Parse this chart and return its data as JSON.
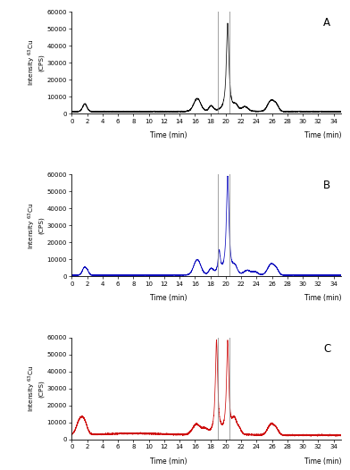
{
  "panels": [
    {
      "label": "A",
      "color": "#000000",
      "seed": 42
    },
    {
      "label": "B",
      "color": "#0000BB",
      "seed": 7
    },
    {
      "label": "C",
      "color": "#CC0000",
      "seed": 13
    }
  ],
  "ylim": [
    0,
    60000
  ],
  "yticks": [
    0,
    10000,
    20000,
    30000,
    40000,
    50000,
    60000
  ],
  "ytick_labels": [
    "0",
    "10000",
    "20000",
    "30000",
    "40000",
    "50000",
    "60000"
  ],
  "xlim": [
    0,
    35
  ],
  "xticks": [
    0,
    2,
    4,
    6,
    8,
    10,
    12,
    14,
    16,
    18,
    20,
    22,
    24,
    26,
    28,
    30,
    32,
    34
  ],
  "xtick_labels": [
    "0",
    "2",
    "4",
    "6",
    "8",
    "10",
    "12",
    "14",
    "16",
    "18",
    "20",
    "22",
    "24",
    "26",
    "28",
    "30",
    "32",
    "34"
  ],
  "xlabel": "Time (min)",
  "ylabel_line1": "Intensity",
  "ylabel_line2": "$^{63}$Cu (CPS)",
  "vlines": [
    19.0,
    20.5
  ],
  "vline_color": "#888888",
  "baseline_A": 1200,
  "baseline_B": 800,
  "baseline_C": 2500,
  "noise_A": 120,
  "noise_B": 100,
  "noise_C": 200
}
